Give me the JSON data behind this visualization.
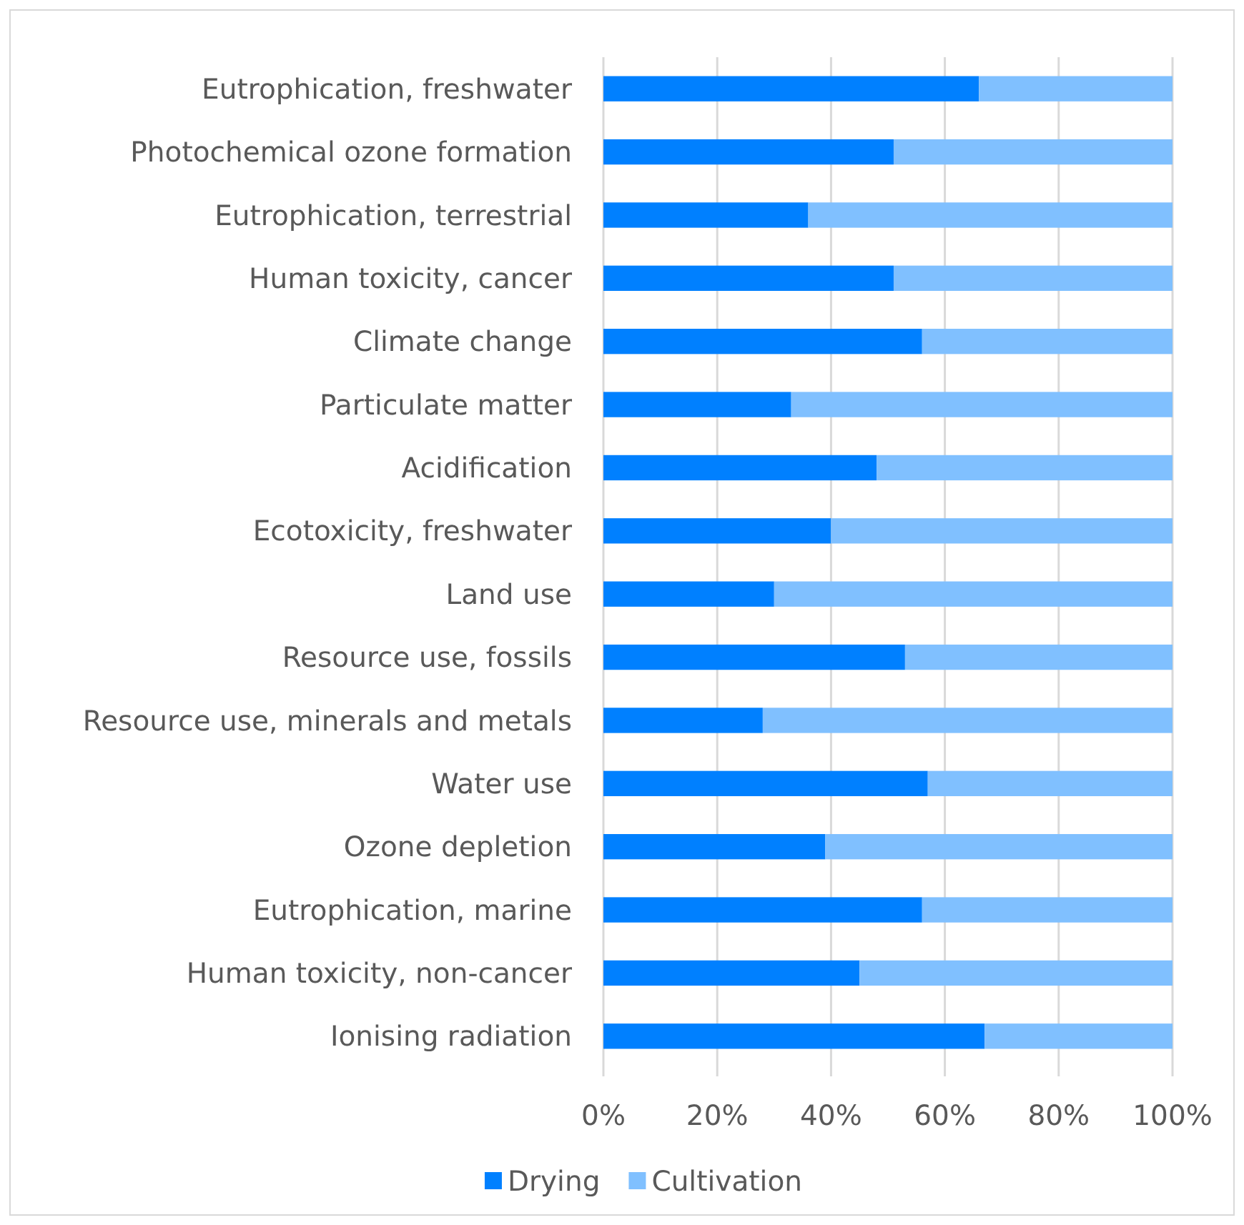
{
  "chart_data": {
    "type": "bar",
    "orientation": "horizontal",
    "stacked": true,
    "categories": [
      "Eutrophication, freshwater",
      "Photochemical ozone formation",
      "Eutrophication, terrestrial",
      "Human toxicity, cancer",
      "Climate change",
      "Particulate matter",
      "Acidification",
      "Ecotoxicity, freshwater",
      "Land use",
      "Resource use, fossils",
      "Resource use, minerals and metals",
      "Water use",
      "Ozone depletion",
      "Eutrophication, marine",
      "Human toxicity, non-cancer",
      "Ionising radiation"
    ],
    "series": [
      {
        "name": "Drying",
        "color": "#0080ff",
        "values": [
          66,
          51,
          36,
          51,
          56,
          33,
          48,
          40,
          30,
          53,
          28,
          57,
          39,
          56,
          45,
          67
        ]
      },
      {
        "name": "Cultivation",
        "color": "#80c0ff",
        "values": [
          34,
          49,
          64,
          49,
          44,
          67,
          52,
          60,
          70,
          47,
          72,
          43,
          61,
          44,
          55,
          33
        ]
      }
    ],
    "xlim": [
      0,
      100
    ],
    "xticks": [
      {
        "value": 0,
        "label": "0%"
      },
      {
        "value": 20,
        "label": "20%"
      },
      {
        "value": 40,
        "label": "40%"
      },
      {
        "value": 60,
        "label": "60%"
      },
      {
        "value": 80,
        "label": "80%"
      },
      {
        "value": 100,
        "label": "100%"
      }
    ],
    "grid": "x",
    "legend": "bottom"
  }
}
